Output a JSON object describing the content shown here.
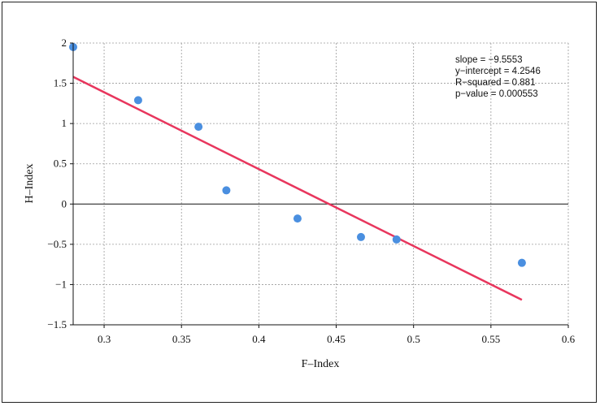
{
  "chart_data": {
    "type": "scatter",
    "title": "",
    "xlabel": "F–Index",
    "ylabel": "H–Index",
    "xlim": [
      0.28,
      0.6
    ],
    "ylim": [
      -1.5,
      2
    ],
    "x_ticks": [
      0.3,
      0.35,
      0.4,
      0.45,
      0.5,
      0.55,
      0.6
    ],
    "x_tick_labels": [
      "0.3",
      "0.35",
      "0.4",
      "0.45",
      "0.5",
      "0.55",
      "0.6"
    ],
    "y_ticks": [
      2,
      1.5,
      1,
      0.5,
      0,
      -0.5,
      -1,
      -1.5
    ],
    "y_tick_labels": [
      "2",
      "1.5",
      "1",
      "0.5",
      "0",
      "−0.5",
      "−1",
      "−1.5"
    ],
    "grid": true,
    "series": [
      {
        "type": "scatter",
        "color": "#4a8fe0",
        "x": [
          0.28,
          0.322,
          0.361,
          0.379,
          0.425,
          0.466,
          0.489,
          0.57
        ],
        "y": [
          1.95,
          1.29,
          0.96,
          0.17,
          -0.18,
          -0.41,
          -0.44,
          -0.73
        ]
      },
      {
        "type": "line",
        "color": "#e8365d",
        "x": [
          0.28,
          0.57
        ],
        "y": [
          1.58,
          -1.19
        ]
      }
    ],
    "annotations": [
      "slope = −9.5553",
      "y−intercept = 4.2546",
      "R−squared = 0.881",
      "p−value = 0.000553"
    ]
  }
}
